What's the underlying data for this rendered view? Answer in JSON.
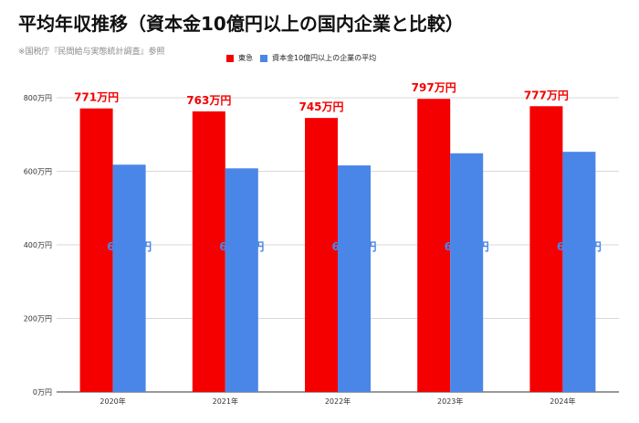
{
  "header": {
    "title": "平均年収推移（資本金10億円以上の国内企業と比較）",
    "subtitle": "※国税庁『民間給与実態統計調査』参照"
  },
  "colors": {
    "series1": "#f50000",
    "series2": "#4a86e8",
    "grid": "#d9d9d9",
    "axis": "#333333"
  },
  "chart_data": {
    "type": "bar",
    "title": "平均年収推移（資本金10億円以上の国内企業と比較）",
    "categories": [
      "2020年",
      "2021年",
      "2022年",
      "2023年",
      "2024年"
    ],
    "series": [
      {
        "name": "東急",
        "values": [
          771,
          763,
          745,
          797,
          777
        ],
        "labels": [
          "771万円",
          "763万円",
          "745万円",
          "797万円",
          "777万円"
        ]
      },
      {
        "name": "資本金10億円以上の企業の平均",
        "values": [
          618,
          608,
          616,
          649,
          653
        ],
        "labels": [
          "618万円",
          "608万円",
          "616万円",
          "649万円",
          "653万円"
        ]
      }
    ],
    "y_ticks": [
      0,
      200,
      400,
      600,
      800
    ],
    "y_tick_labels": [
      "0万円",
      "200万円",
      "400万円",
      "600万円",
      "800万円"
    ],
    "ylim": [
      0,
      800
    ],
    "grid": true,
    "legend_position": "top"
  }
}
